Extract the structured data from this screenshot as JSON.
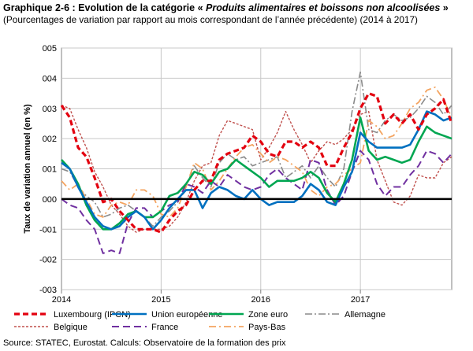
{
  "header": {
    "title_prefix": "Graphique 2-6 : Evolution de la catégorie « ",
    "title_italic": "Produits alimentaires et boissons non alcoolisées",
    "title_suffix": " »",
    "subtitle": "(Pourcentages de variation par rapport au mois correspondant de l’année précédente) (2014 à 2017)"
  },
  "source": "Source: STATEC, Eurostat. Calculs: Observatoire de la formation des prix",
  "chart_data": {
    "type": "line",
    "ylabel": "Taux de variation annuel (en %)",
    "xlabel": "",
    "ylim": [
      -0.03,
      0.05
    ],
    "yticks": [
      -0.03,
      -0.02,
      -0.01,
      0,
      0.01,
      0.02,
      0.03,
      0.04,
      0.05
    ],
    "ytick_labels": [
      "-003",
      "-002",
      "-001",
      "000",
      "001",
      "002",
      "003",
      "004",
      "005"
    ],
    "x_tick_labels": [
      "2014",
      "2015",
      "2016",
      "2017"
    ],
    "x_start": "2014-01",
    "x_end": "2017-12",
    "grid": true,
    "legend_position": "bottom",
    "zero_line": true,
    "series": [
      {
        "name": "Luxembourg (IPCN)",
        "color": "#e3000f",
        "dash": "7,4",
        "width": 3.2,
        "values": [
          0.031,
          0.027,
          0.017,
          0.014,
          0.007,
          -0.001,
          0,
          -0.004,
          -0.007,
          -0.01,
          -0.01,
          -0.01,
          -0.011,
          -0.007,
          -0.004,
          -0.002,
          0.003,
          0.006,
          0.006,
          0.013,
          0.015,
          0.016,
          0.017,
          0.021,
          0.019,
          0.015,
          0.014,
          0.019,
          0.019,
          0.017,
          0.019,
          0.017,
          0.011,
          0.011,
          0.017,
          0.022,
          0.03,
          0.035,
          0.034,
          0.025,
          0.028,
          0.025,
          0.028,
          0.023,
          0.028,
          0.03,
          0.033,
          0.025
        ]
      },
      {
        "name": "Union européenne",
        "color": "#0070c0",
        "dash": "",
        "width": 2.6,
        "values": [
          0.012,
          0.01,
          0.004,
          -0.001,
          -0.006,
          -0.009,
          -0.01,
          -0.009,
          -0.006,
          -0.004,
          -0.006,
          -0.01,
          -0.007,
          -0.003,
          0,
          0.003,
          0.003,
          -0.003,
          0.002,
          0.004,
          0.003,
          0.001,
          0,
          0.003,
          0,
          -0.002,
          -0.001,
          -0.001,
          -0.001,
          0.001,
          0.005,
          0.003,
          -0.001,
          -0.002,
          0.004,
          0.009,
          0.022,
          0.019,
          0.017,
          0.017,
          0.017,
          0.017,
          0.018,
          0.023,
          0.029,
          0.028,
          0.026,
          0.027
        ]
      },
      {
        "name": "Zone euro",
        "color": "#00a651",
        "dash": "",
        "width": 2.6,
        "values": [
          0.013,
          0.01,
          0.005,
          -0.002,
          -0.007,
          -0.01,
          -0.01,
          -0.008,
          -0.005,
          -0.004,
          -0.006,
          -0.006,
          -0.004,
          0.001,
          0.002,
          0.005,
          0.009,
          0.008,
          0.005,
          0.009,
          0.01,
          0.013,
          0.011,
          0.009,
          0.007,
          0.004,
          0.006,
          0.006,
          0.006,
          0.007,
          0.009,
          0.007,
          0.002,
          -0.001,
          0.005,
          0.013,
          0.027,
          0.016,
          0.013,
          0.014,
          0.013,
          0.012,
          0.013,
          0.019,
          0.024,
          0.022,
          0.021,
          0.02
        ]
      },
      {
        "name": "Allemagne",
        "color": "#8a8a8a",
        "dash": "9,3,2,3",
        "width": 1.6,
        "values": [
          0.01,
          0.009,
          0.004,
          0.001,
          -0.001,
          -0.006,
          -0.005,
          -0.003,
          -0.002,
          -0.004,
          -0.006,
          -0.009,
          -0.006,
          -0.004,
          -0.001,
          0.004,
          0.011,
          0.007,
          0.004,
          0.012,
          0.015,
          0.013,
          0.014,
          0.011,
          0.012,
          0.013,
          0.014,
          0.007,
          0.009,
          0.011,
          0.007,
          0.011,
          0.007,
          0.004,
          0.01,
          0.029,
          0.042,
          0.023,
          0.022,
          0.026,
          0.028,
          0.026,
          0.027,
          0.03,
          0.034,
          0.032,
          0.028,
          0.031
        ]
      },
      {
        "name": "Belgique",
        "color": "#c0504d",
        "dash": "3,2",
        "width": 1.4,
        "values": [
          0.031,
          0.03,
          0.023,
          0.017,
          0.009,
          0.004,
          -0.002,
          -0.005,
          -0.009,
          -0.011,
          -0.01,
          -0.01,
          -0.01,
          -0.009,
          -0.006,
          -0.001,
          0.006,
          0.011,
          0.012,
          0.021,
          0.026,
          0.025,
          0.024,
          0.023,
          0.013,
          0.017,
          0.022,
          0.029,
          0.023,
          0.018,
          0.012,
          0.016,
          0.019,
          0.018,
          0.02,
          0.023,
          0.028,
          0.029,
          0.013,
          0.006,
          -0.001,
          -0.002,
          0.001,
          0.008,
          0.007,
          0.007,
          0.012,
          0.014
        ]
      },
      {
        "name": "France",
        "color": "#7030a0",
        "dash": "9,5",
        "width": 2.0,
        "values": [
          0,
          -0.002,
          -0.003,
          -0.007,
          -0.01,
          -0.018,
          -0.017,
          -0.018,
          -0.008,
          -0.003,
          -0.003,
          -0.006,
          -0.004,
          -0.002,
          -0.001,
          0.005,
          0.004,
          0.002,
          0.006,
          0.004,
          0.008,
          0.006,
          0.004,
          0.003,
          0.004,
          0.008,
          0.01,
          0.007,
          0.005,
          0.003,
          0.013,
          0.012,
          0.003,
          -0.002,
          0.001,
          0.009,
          0.016,
          0.013,
          0.005,
          0.001,
          0.004,
          0.004,
          0.008,
          0.011,
          0.016,
          0.015,
          0.012,
          0.015
        ]
      },
      {
        "name": "Pays-Bas",
        "color": "#f4a460",
        "dash": "9,4,2,4",
        "width": 1.8,
        "values": [
          0.006,
          0.003,
          0.005,
          0,
          -0.005,
          -0.006,
          -0.002,
          -0.001,
          -0.002,
          0.003,
          0.003,
          0.001,
          -0.005,
          -0.006,
          -0.003,
          0.004,
          0.012,
          0.01,
          0.003,
          0.006,
          0.01,
          0.014,
          0.017,
          0.018,
          0.015,
          0.012,
          0.014,
          0.013,
          0.011,
          0.009,
          0.003,
          0.001,
          0.004,
          0.005,
          0.008,
          0.01,
          0.012,
          0.026,
          0.024,
          0.02,
          0.021,
          0.025,
          0.03,
          0.032,
          0.036,
          0.037,
          0.033,
          0.027
        ]
      }
    ]
  }
}
